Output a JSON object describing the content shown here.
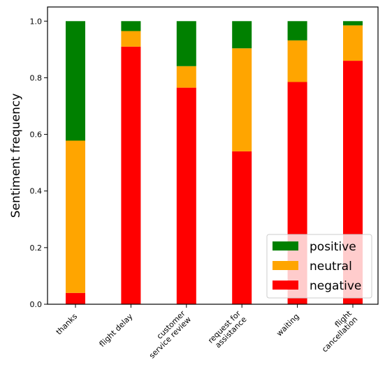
{
  "chart_data": {
    "type": "bar",
    "stacked": true,
    "categories": [
      [
        "thanks"
      ],
      [
        "flight delay"
      ],
      [
        "customer",
        "service review"
      ],
      [
        "request for",
        "assistance"
      ],
      [
        "waiting"
      ],
      [
        "flight",
        "cancellation"
      ]
    ],
    "series": [
      {
        "name": "negative",
        "color": "#ff0000",
        "values": [
          0.04,
          0.91,
          0.765,
          0.54,
          0.785,
          0.86
        ]
      },
      {
        "name": "neutral",
        "color": "#ffa500",
        "values": [
          0.538,
          0.055,
          0.076,
          0.364,
          0.147,
          0.125
        ]
      },
      {
        "name": "positive",
        "color": "#008000",
        "values": [
          0.422,
          0.035,
          0.159,
          0.096,
          0.068,
          0.015
        ]
      }
    ],
    "title": "",
    "xlabel": "",
    "ylabel": "Sentiment frequency",
    "ylim": [
      0,
      1.05
    ],
    "yticks": [
      "0.0",
      "0.2",
      "0.4",
      "0.6",
      "0.8",
      "1.0"
    ],
    "legend": {
      "placement": "lower-right",
      "entries": [
        "positive",
        "neutral",
        "negative"
      ]
    },
    "grid": false
  }
}
